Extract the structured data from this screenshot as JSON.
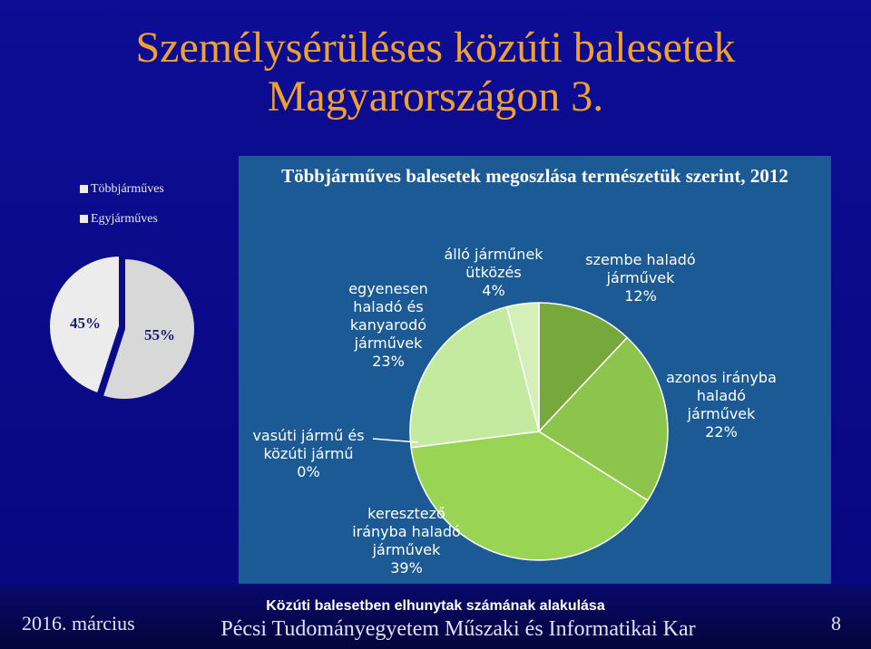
{
  "slide": {
    "title_line1": "Személysérüléses közúti balesetek",
    "title_line2": "Magyarországon 3."
  },
  "footer": {
    "date": "2016. március",
    "line1": "Közúti balesetben elhunytak számának alakulása",
    "line2": "Pécsi Tudományegyetem Műszaki és Informatikai Kar",
    "page": "8"
  },
  "colors": {
    "title": "#f0a030",
    "panel": "#1b5a94",
    "slide_bg": "#0b0b8c"
  },
  "chart_data": [
    {
      "type": "pie",
      "legend": [
        "Többjárműves",
        "Egyjárműves"
      ],
      "legend_placement": "top-left",
      "slices": [
        {
          "label": "Többjárműves",
          "value": 45,
          "value_label": "45%",
          "color": "#ececec"
        },
        {
          "label": "Egyjárműves",
          "value": 55,
          "value_label": "55%",
          "color": "#d8d8d8"
        }
      ]
    },
    {
      "type": "pie",
      "title": "Többjárműves balesetek megoszlása természetük szerint, 2012",
      "slices": [
        {
          "label": "szembe haladó\njárművek\n12%",
          "value": 12,
          "color": "#76a83c"
        },
        {
          "label": "azonos irányba\nhaladó\njárművek\n22%",
          "value": 22,
          "color": "#8cc44c"
        },
        {
          "label": "keresztező\nirányba haladó\njárművek\n39%",
          "value": 39,
          "color": "#9ad455"
        },
        {
          "label": "vasúti jármű és\nközúti jármű\n0%",
          "value": 0,
          "color": "#a8de6e"
        },
        {
          "label": "egyenesen\nhaladó és\nkanyarodó\njárművek\n23%",
          "value": 23,
          "color": "#c4eaa0"
        },
        {
          "label": "álló járműnek\nütközés\n4%",
          "value": 4,
          "color": "#d4f0b8"
        }
      ]
    }
  ]
}
